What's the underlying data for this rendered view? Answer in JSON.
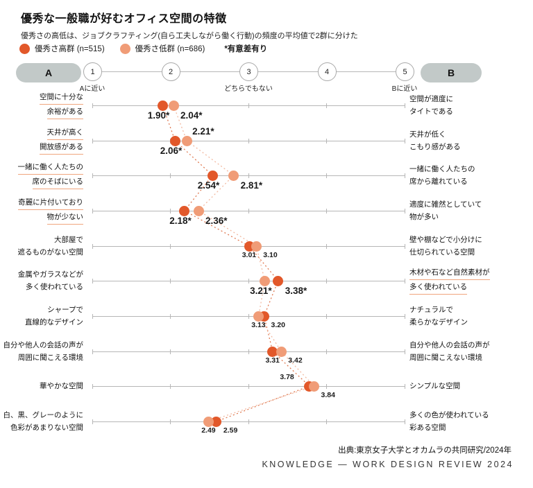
{
  "header": {
    "title": "優秀な一般職が好むオフィス空間の特徴",
    "subtitle": "優秀さの高低は、ジョブクラフティング(自ら工夫しながら働く行動)の頻度の平均値で2群に分けた",
    "legend": {
      "high": {
        "label": "優秀さ高群 (n=515)"
      },
      "low": {
        "label": "優秀さ低群 (n=686)"
      },
      "note": "*有意差有り"
    }
  },
  "scale": {
    "left_pill": "A",
    "right_pill": "B",
    "ticks": [
      1,
      2,
      3,
      4,
      5
    ],
    "tick_captions": [
      {
        "value": 1,
        "label": "Aに近い"
      },
      {
        "value": 3,
        "label": "どちらでもない"
      },
      {
        "value": 5,
        "label": "Bに近い"
      }
    ]
  },
  "chart_data": {
    "type": "dumbbell",
    "axis": {
      "min": 1,
      "max": 5
    },
    "series_names": [
      "優秀さ高群",
      "優秀さ低群"
    ],
    "rows": [
      {
        "left": [
          "空間に十分な",
          "余裕がある"
        ],
        "right": [
          "空間が適度に",
          "タイトである"
        ],
        "high": 1.9,
        "low": 2.04,
        "high_label": "1.90*",
        "low_label": "2.04*",
        "sig": true,
        "underline": "left",
        "high_pos": "bl",
        "low_pos": "br"
      },
      {
        "left": [
          "天井が高く",
          "開放感がある"
        ],
        "right": [
          "天井が低く",
          "こもり感がある"
        ],
        "high": 2.06,
        "low": 2.21,
        "high_label": "2.06*",
        "low_label": "2.21*",
        "sig": true,
        "underline": "left",
        "high_pos": "bl",
        "low_pos": "ar"
      },
      {
        "left": [
          "一緒に働く人たちの",
          "席のそばにいる"
        ],
        "right": [
          "一緒に働く人たちの",
          "席から離れている"
        ],
        "high": 2.54,
        "low": 2.81,
        "high_label": "2.54*",
        "low_label": "2.81*",
        "sig": true,
        "underline": "left",
        "high_pos": "bl",
        "low_pos": "br"
      },
      {
        "left": [
          "奇麗に片付いており",
          "物が少ない"
        ],
        "right": [
          "適度に雑然としていて",
          "物が多い"
        ],
        "high": 2.18,
        "low": 2.36,
        "high_label": "2.18*",
        "low_label": "2.36*",
        "sig": true,
        "underline": "left",
        "high_pos": "bl",
        "low_pos": "br"
      },
      {
        "left": [
          "大部屋で",
          "遮るものがない空間"
        ],
        "right": [
          "壁や棚などで小分けに",
          "仕切られている空間"
        ],
        "high": 3.01,
        "low": 3.1,
        "high_label": "3.01",
        "low_label": "3.10",
        "sig": false,
        "underline": null,
        "high_pos": "bl",
        "low_pos": "br"
      },
      {
        "left": [
          "金属やガラスなどが",
          "多く使われている"
        ],
        "right": [
          "木材や石など自然素材が",
          "多く使われている"
        ],
        "high": 3.38,
        "low": 3.21,
        "high_label": "3.38*",
        "low_label": "3.21*",
        "sig": true,
        "underline": "right",
        "high_pos": "br",
        "low_pos": "bl"
      },
      {
        "left": [
          "シャープで",
          "直線的なデザイン"
        ],
        "right": [
          "ナチュラルで",
          "柔らかなデザイン"
        ],
        "high": 3.2,
        "low": 3.13,
        "high_label": "3.20",
        "low_label": "3.13",
        "sig": false,
        "underline": null,
        "high_pos": "br",
        "low_pos": "bl"
      },
      {
        "left": [
          "自分や他人の会話の声が",
          "周囲に聞こえる環境"
        ],
        "right": [
          "自分や他人の会話の声が",
          "周囲に聞こえない環境"
        ],
        "high": 3.31,
        "low": 3.42,
        "high_label": "3.31",
        "low_label": "3.42",
        "sig": false,
        "underline": null,
        "high_pos": "bl",
        "low_pos": "br"
      },
      {
        "left": [
          "華やかな空間"
        ],
        "right": [
          "シンプルな空間"
        ],
        "high": 3.78,
        "low": 3.84,
        "high_label": "3.78",
        "low_label": "3.84",
        "sig": false,
        "underline": null,
        "high_pos": "al",
        "low_pos": "br"
      },
      {
        "left": [
          "白、黒、グレーのように",
          "色彩があまりない空間"
        ],
        "right": [
          "多くの色が使われている",
          "彩ある空間"
        ],
        "high": 2.59,
        "low": 2.49,
        "high_label": "2.59",
        "low_label": "2.49",
        "sig": false,
        "underline": null,
        "high_pos": "br",
        "low_pos": "bl"
      }
    ]
  },
  "footer": {
    "source": "出典:東京女子大学とオカムラの共同研究/2024年",
    "brand": "KNOWLEDGE — WORK DESIGN REVIEW 2024"
  },
  "colors": {
    "high": "#e2582a",
    "low": "#f09c77",
    "high_line": "#e07a52",
    "low_line": "#f2b9a0",
    "underline": "#f0a57d",
    "axis": "#b6b6b6",
    "pill": "#c2c9c8"
  }
}
